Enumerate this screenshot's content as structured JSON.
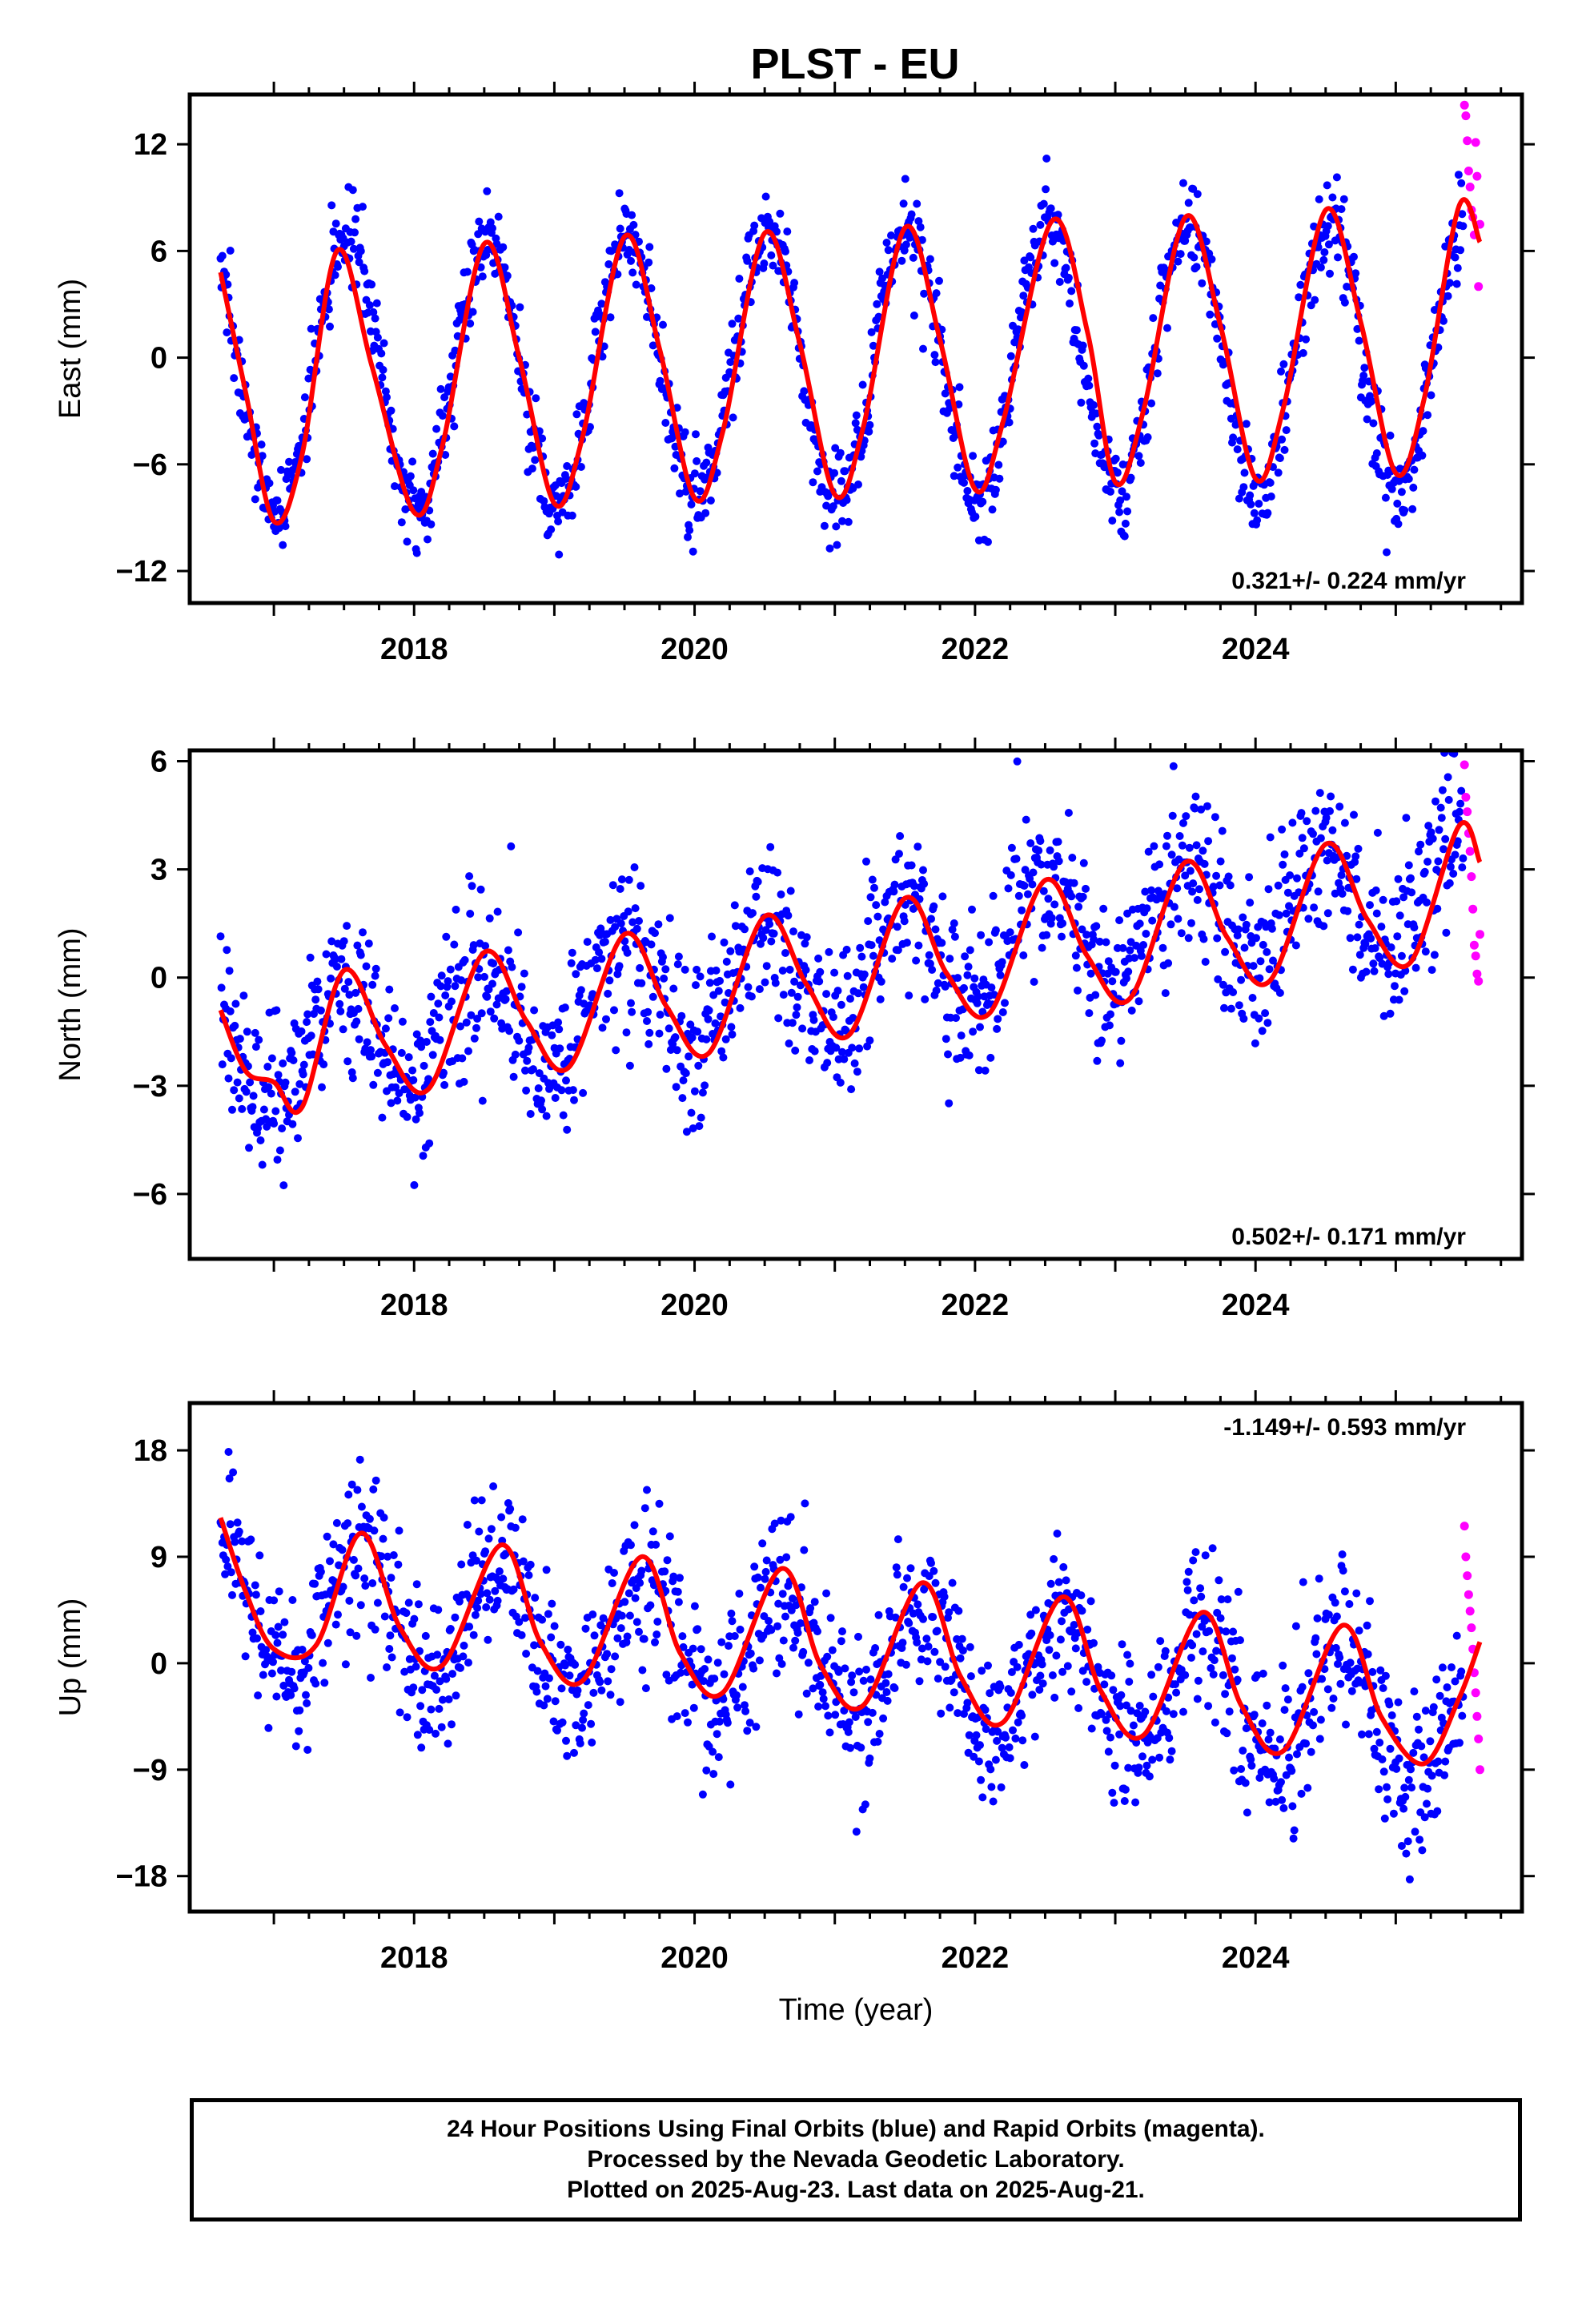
{
  "title": "PLST - EU",
  "footer": {
    "line1": "24 Hour Positions Using Final Orbits (blue) and Rapid Orbits (magenta).",
    "line2": "Processed by the Nevada Geodetic Laboratory.",
    "line3": "Plotted on 2025-Aug-23. Last data on 2025-Aug-21."
  },
  "colors": {
    "final_orbits": "#0000ff",
    "rapid_orbits": "#ff00ff",
    "model_fit": "#ff0000"
  },
  "chart_data": [
    {
      "type": "scatter",
      "ylabel": "East (mm)",
      "xlabel": "",
      "xlim": [
        2016.4,
        2025.9
      ],
      "ylim": [
        -13.8,
        14.8
      ],
      "yticks": [
        -12,
        -6,
        0,
        6,
        12
      ],
      "xticks": [
        2018,
        2020,
        2022,
        2024
      ],
      "rate": "0.321+/- 0.224 mm/yr",
      "rate_position": "bottom-right",
      "series": [
        {
          "role": "final",
          "color": "#0000ff",
          "start": 2016.62,
          "end": 2025.48,
          "seasonal": {
            "amplitude": 7.6,
            "peak_phase": 0.52
          },
          "trend_at_start": -1.3,
          "trend_at_end": 0.3,
          "scatter": 1.3
        },
        {
          "role": "rapid",
          "color": "#ff00ff",
          "x": [
            2025.49,
            2025.5,
            2025.51,
            2025.52,
            2025.53,
            2025.54,
            2025.55,
            2025.56,
            2025.57,
            2025.58,
            2025.59,
            2025.6
          ],
          "y": [
            14.2,
            13.6,
            12.2,
            10.5,
            9.6,
            8.3,
            7.9,
            6.9,
            12.1,
            10.2,
            4.0,
            7.5
          ]
        },
        {
          "role": "model",
          "color": "#ff0000",
          "x": [
            2016.62,
            2016.8,
            2017.0,
            2017.2,
            2017.45,
            2017.7,
            2018.0,
            2018.2,
            2018.5,
            2018.75,
            2019.0,
            2019.2,
            2019.5,
            2019.75,
            2020.0,
            2020.2,
            2020.5,
            2020.75,
            2021.0,
            2021.2,
            2021.5,
            2021.75,
            2022.0,
            2022.2,
            2022.55,
            2022.8,
            2023.0,
            2023.2,
            2023.5,
            2023.75,
            2024.0,
            2024.2,
            2024.5,
            2024.75,
            2025.0,
            2025.2,
            2025.45,
            2025.6
          ],
          "y": [
            4.8,
            -2.0,
            -9.2,
            -5.5,
            6.0,
            -0.5,
            -8.7,
            -5.0,
            6.4,
            0.0,
            -8.2,
            -4.5,
            6.8,
            0.5,
            -7.9,
            -4.2,
            7.0,
            0.8,
            -7.7,
            -4.0,
            7.3,
            1.0,
            -7.4,
            -3.6,
            7.7,
            1.5,
            -7.0,
            -3.0,
            7.9,
            1.8,
            -6.8,
            -2.8,
            8.3,
            2.0,
            -6.5,
            -2.4,
            8.5,
            6.5
          ]
        }
      ]
    },
    {
      "type": "scatter",
      "ylabel": "North (mm)",
      "xlabel": "",
      "xlim": [
        2016.4,
        2025.9
      ],
      "ylim": [
        -7.8,
        6.3
      ],
      "yticks": [
        -6,
        -3,
        0,
        3,
        6
      ],
      "xticks": [
        2018,
        2020,
        2022,
        2024
      ],
      "rate": "0.502+/- 0.171 mm/yr",
      "rate_position": "bottom-right",
      "series": [
        {
          "role": "final",
          "color": "#0000ff",
          "start": 2016.62,
          "end": 2025.48,
          "seasonal": {
            "amplitude": 1.6,
            "peak_phase": 0.48
          },
          "trend_at_start": -2.2,
          "trend_at_end": 2.8,
          "scatter": 1.15
        },
        {
          "role": "rapid",
          "color": "#ff00ff",
          "x": [
            2025.49,
            2025.5,
            2025.51,
            2025.52,
            2025.53,
            2025.54,
            2025.55,
            2025.56,
            2025.57,
            2025.58,
            2025.59,
            2025.6
          ],
          "y": [
            5.9,
            5.0,
            4.6,
            4.0,
            3.5,
            2.8,
            1.9,
            0.9,
            0.6,
            0.1,
            -0.1,
            1.2
          ]
        },
        {
          "role": "model",
          "color": "#ff0000",
          "x": [
            2016.62,
            2016.8,
            2017.0,
            2017.2,
            2017.5,
            2017.8,
            2018.1,
            2018.5,
            2018.8,
            2019.1,
            2019.5,
            2019.8,
            2020.1,
            2020.5,
            2020.8,
            2021.1,
            2021.5,
            2021.8,
            2022.1,
            2022.5,
            2022.8,
            2023.1,
            2023.5,
            2023.8,
            2024.1,
            2024.5,
            2024.8,
            2025.1,
            2025.45,
            2025.6
          ],
          "y": [
            -0.9,
            -2.6,
            -2.9,
            -3.6,
            0.2,
            -1.9,
            -3.1,
            0.7,
            -1.2,
            -2.5,
            1.2,
            -0.8,
            -2.1,
            1.7,
            -0.2,
            -1.6,
            2.2,
            0.1,
            -1.0,
            2.7,
            0.6,
            -0.6,
            3.2,
            1.1,
            -0.1,
            3.7,
            1.6,
            0.4,
            4.2,
            3.2
          ]
        }
      ]
    },
    {
      "type": "scatter",
      "ylabel": "Up (mm)",
      "xlabel": "Time (year)",
      "xlim": [
        2016.4,
        2025.9
      ],
      "ylim": [
        -21,
        22
      ],
      "yticks": [
        -18,
        -9,
        0,
        9,
        18
      ],
      "xticks": [
        2018,
        2020,
        2022,
        2024
      ],
      "rate": "-1.149+/- 0.593 mm/yr",
      "rate_position": "top-right",
      "series": [
        {
          "role": "final",
          "color": "#0000ff",
          "start": 2016.62,
          "end": 2025.48,
          "seasonal": {
            "amplitude": 5.2,
            "peak_phase": 0.62
          },
          "trend_at_start": 5.5,
          "trend_at_end": -4.8,
          "scatter": 3.4
        },
        {
          "role": "rapid",
          "color": "#ff00ff",
          "x": [
            2025.49,
            2025.5,
            2025.51,
            2025.52,
            2025.53,
            2025.54,
            2025.55,
            2025.56,
            2025.57,
            2025.58,
            2025.59,
            2025.6
          ],
          "y": [
            11.6,
            9.0,
            7.4,
            5.8,
            4.4,
            3.0,
            1.2,
            -0.8,
            -2.5,
            -4.5,
            -6.4,
            -9.0
          ]
        },
        {
          "role": "model",
          "color": "#ff0000",
          "x": [
            2016.62,
            2016.8,
            2017.0,
            2017.3,
            2017.62,
            2017.9,
            2018.2,
            2018.62,
            2018.9,
            2019.2,
            2019.62,
            2019.9,
            2020.2,
            2020.62,
            2020.9,
            2021.2,
            2021.62,
            2021.9,
            2022.2,
            2022.62,
            2022.9,
            2023.2,
            2023.62,
            2023.9,
            2024.2,
            2024.62,
            2024.9,
            2025.2,
            2025.45,
            2025.6
          ],
          "y": [
            12.3,
            6.0,
            1.2,
            1.5,
            11.0,
            3.0,
            -0.2,
            10.0,
            1.8,
            -1.5,
            9.0,
            0.8,
            -2.5,
            8.0,
            -0.2,
            -3.6,
            6.8,
            -1.2,
            -5.0,
            5.6,
            -2.4,
            -6.1,
            4.3,
            -3.6,
            -7.4,
            3.2,
            -4.6,
            -8.5,
            -3.0,
            1.8
          ]
        }
      ]
    }
  ]
}
